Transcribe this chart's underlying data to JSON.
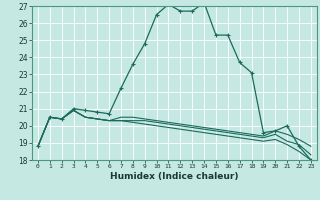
{
  "xlabel": "Humidex (Indice chaleur)",
  "ylabel": "",
  "xlim": [
    -0.5,
    23.5
  ],
  "ylim": [
    18,
    27
  ],
  "yticks": [
    18,
    19,
    20,
    21,
    22,
    23,
    24,
    25,
    26,
    27
  ],
  "xticks": [
    0,
    1,
    2,
    3,
    4,
    5,
    6,
    7,
    8,
    9,
    10,
    11,
    12,
    13,
    14,
    15,
    16,
    17,
    18,
    19,
    20,
    21,
    22,
    23
  ],
  "bg_color": "#c5e8e3",
  "grid_color": "#ffffff",
  "line_color": "#1a6b5a",
  "lines": [
    {
      "x": [
        0,
        1,
        2,
        3,
        4,
        5,
        6,
        7,
        8,
        9,
        10,
        11,
        12,
        13,
        14,
        15,
        16,
        17,
        18,
        19,
        20,
        21,
        22,
        23
      ],
      "y": [
        18.8,
        20.5,
        20.4,
        21.0,
        20.9,
        20.8,
        20.7,
        22.2,
        23.6,
        24.8,
        26.5,
        27.1,
        26.7,
        26.7,
        27.2,
        25.3,
        25.3,
        23.7,
        23.1,
        19.6,
        19.7,
        20.0,
        18.8,
        18.0
      ],
      "markers": true
    },
    {
      "x": [
        0,
        1,
        2,
        3,
        4,
        5,
        6,
        7,
        8,
        9,
        10,
        11,
        12,
        13,
        14,
        15,
        16,
        17,
        18,
        19,
        20,
        21,
        22,
        23
      ],
      "y": [
        18.8,
        20.5,
        20.4,
        20.9,
        20.5,
        20.4,
        20.3,
        20.5,
        20.5,
        20.4,
        20.3,
        20.2,
        20.1,
        20.0,
        19.9,
        19.8,
        19.7,
        19.6,
        19.5,
        19.4,
        19.7,
        19.5,
        19.2,
        18.8
      ],
      "markers": false
    },
    {
      "x": [
        0,
        1,
        2,
        3,
        4,
        5,
        6,
        7,
        8,
        9,
        10,
        11,
        12,
        13,
        14,
        15,
        16,
        17,
        18,
        19,
        20,
        21,
        22,
        23
      ],
      "y": [
        18.8,
        20.5,
        20.4,
        20.9,
        20.5,
        20.4,
        20.3,
        20.3,
        20.3,
        20.3,
        20.2,
        20.1,
        20.0,
        19.9,
        19.8,
        19.7,
        19.6,
        19.5,
        19.4,
        19.3,
        19.5,
        19.1,
        18.9,
        18.3
      ],
      "markers": false
    },
    {
      "x": [
        0,
        1,
        2,
        3,
        4,
        5,
        6,
        7,
        8,
        9,
        10,
        11,
        12,
        13,
        14,
        15,
        16,
        17,
        18,
        19,
        20,
        21,
        22,
        23
      ],
      "y": [
        18.8,
        20.5,
        20.4,
        20.9,
        20.5,
        20.4,
        20.3,
        20.3,
        20.2,
        20.1,
        20.0,
        19.9,
        19.8,
        19.7,
        19.6,
        19.5,
        19.4,
        19.3,
        19.2,
        19.1,
        19.2,
        18.9,
        18.5,
        18.0
      ],
      "markers": false
    }
  ]
}
